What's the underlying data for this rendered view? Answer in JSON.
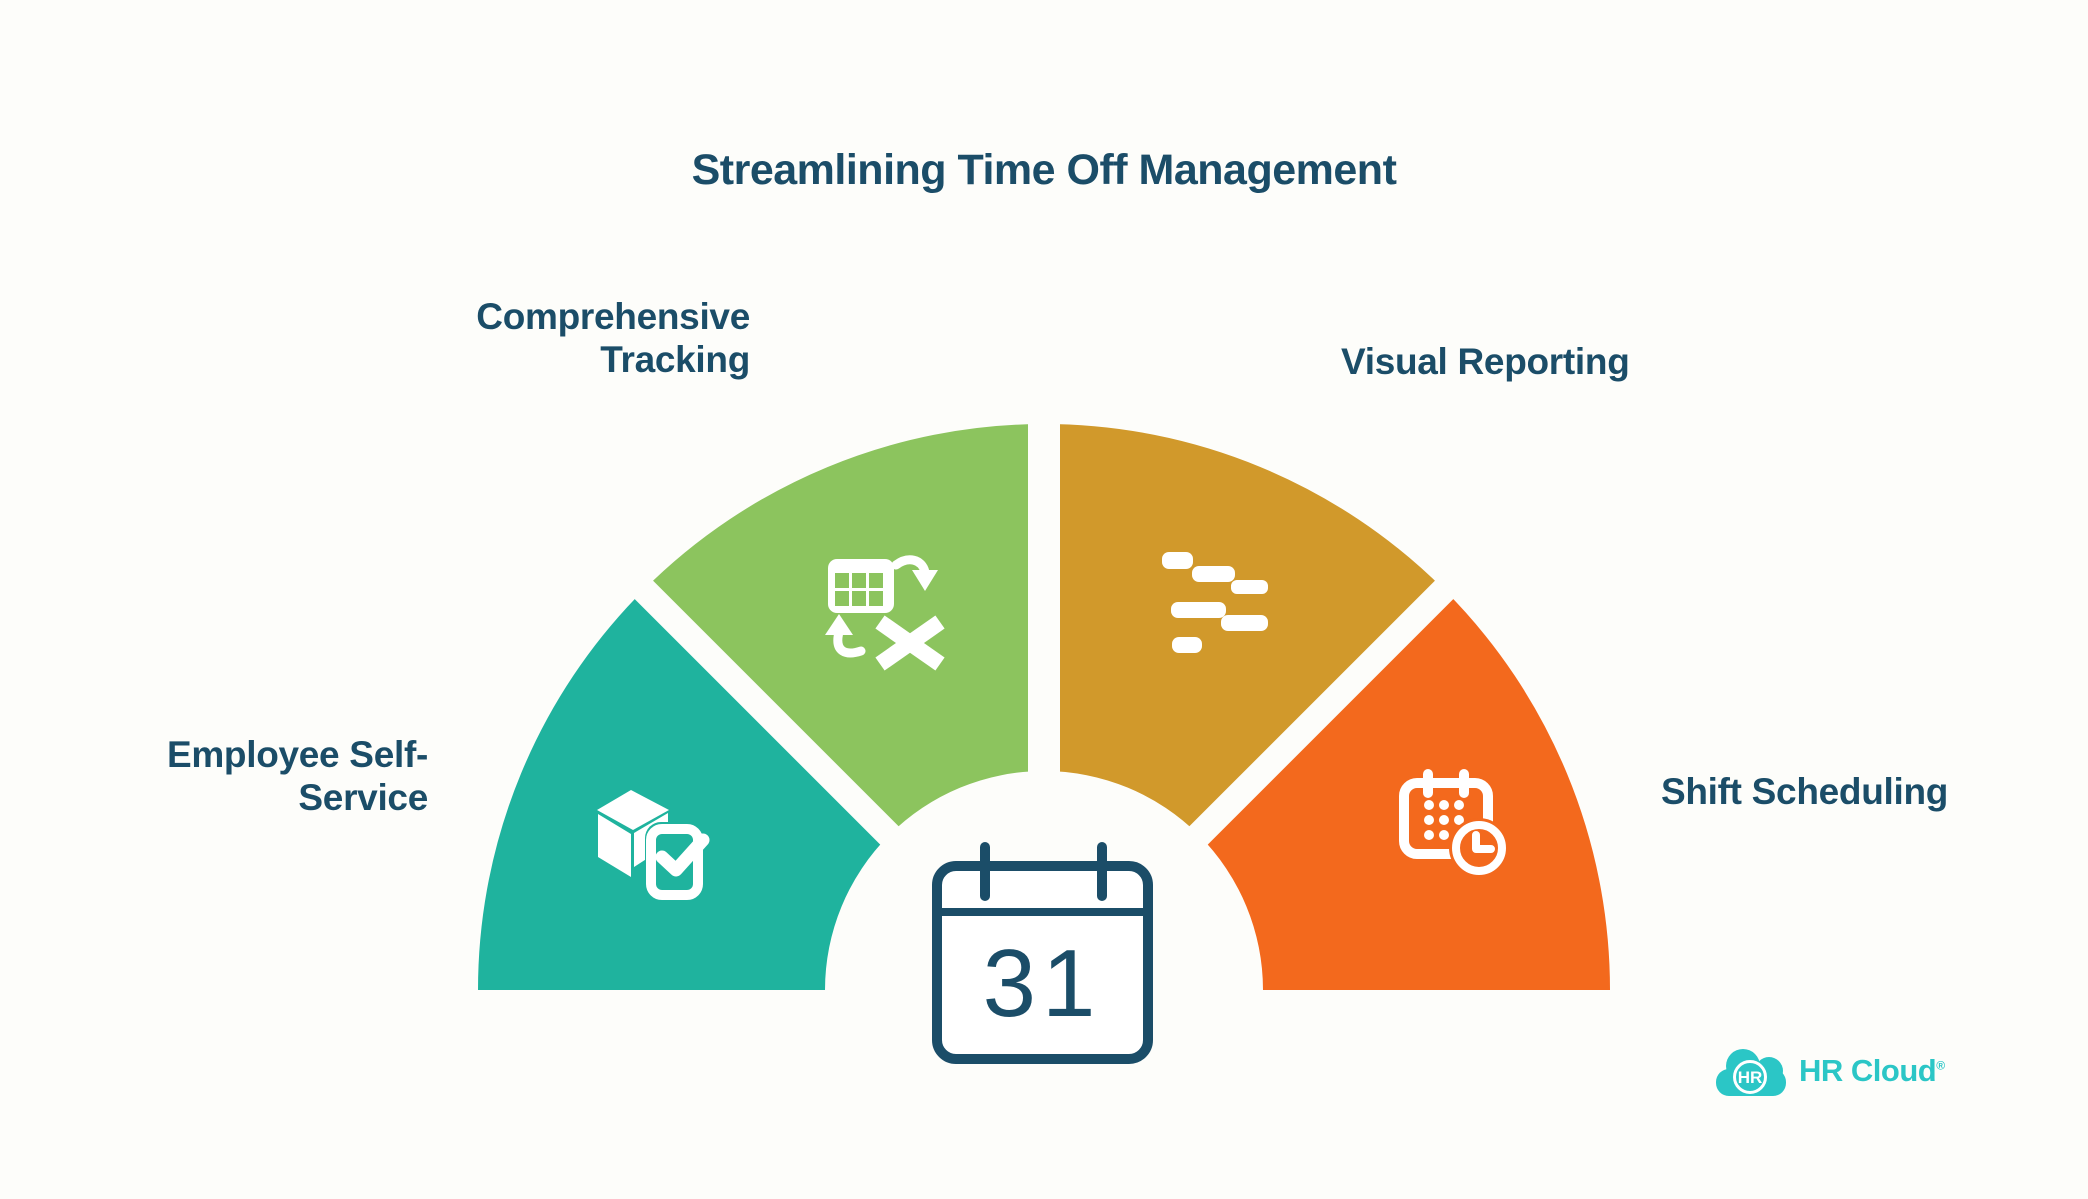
{
  "page": {
    "title": "Streamlining Time Off Management",
    "background": "#fdfdfa"
  },
  "colors": {
    "navy": "#1b4d68",
    "white": "#ffffff"
  },
  "chart_data": {
    "type": "pie",
    "variant": "semicircle-donut-gauge",
    "title": "Streamlining Time Off Management",
    "legend_position": "radial-outside-labels",
    "grid": false,
    "center_icon": "calendar-icon",
    "center_value": "31",
    "segments": [
      {
        "label": "Employee Self-Service",
        "display_label": "Employee Self-\nService",
        "value": 1,
        "color": "#1fb39e",
        "icon": "cube-check-icon",
        "start_angle": 135,
        "end_angle": 180
      },
      {
        "label": "Comprehensive Tracking",
        "display_label": "Comprehensive\nTracking",
        "value": 1,
        "color": "#8cc45e",
        "icon": "table-convert-icon",
        "start_angle": 90,
        "end_angle": 135
      },
      {
        "label": "Visual Reporting",
        "display_label": "Visual Reporting",
        "value": 1,
        "color": "#d1992b",
        "icon": "gantt-chart-icon",
        "start_angle": 45,
        "end_angle": 90
      },
      {
        "label": "Shift Scheduling",
        "display_label": "Shift Scheduling",
        "value": 1,
        "color": "#f3691d",
        "icon": "calendar-clock-icon",
        "start_angle": 0,
        "end_angle": 45
      }
    ]
  },
  "brand": {
    "badge": "HR",
    "name": "HR Cloud",
    "mark": "®",
    "color": "#2bc6c6"
  }
}
